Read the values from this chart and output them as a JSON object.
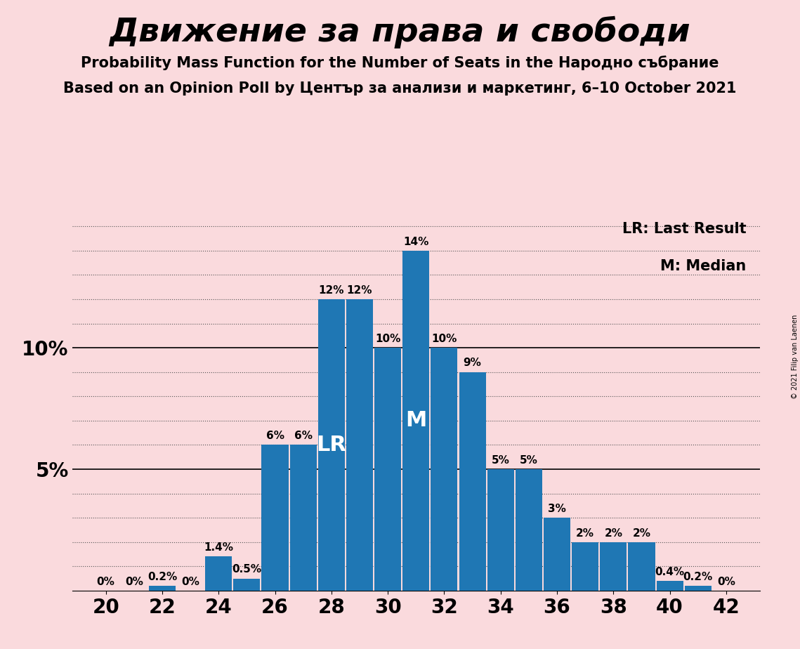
{
  "title": "Движение за права и свободи",
  "subtitle1": "Probability Mass Function for the Number of Seats in the Народно събрание",
  "subtitle2": "Based on an Opinion Poll by Център за анализи и маркетинг, 6–10 October 2021",
  "copyright": "© 2021 Filip van Laenen",
  "seats": [
    20,
    21,
    22,
    23,
    24,
    25,
    26,
    27,
    28,
    29,
    30,
    31,
    32,
    33,
    34,
    35,
    36,
    37,
    38,
    39,
    40,
    41,
    42
  ],
  "probabilities": [
    0.0,
    0.0,
    0.2,
    0.0,
    1.4,
    0.5,
    6.0,
    6.0,
    12.0,
    12.0,
    10.0,
    14.0,
    10.0,
    9.0,
    5.0,
    5.0,
    3.0,
    2.0,
    2.0,
    2.0,
    0.4,
    0.2,
    0.0
  ],
  "bar_labels": [
    "0%",
    "0%",
    "0.2%",
    "0%",
    "1.4%",
    "0.5%",
    "6%",
    "6%",
    "12%",
    "12%",
    "10%",
    "14%",
    "10%",
    "9%",
    "5%",
    "5%",
    "3%",
    "2%",
    "2%",
    "2%",
    "0.4%",
    "0.2%",
    "0%"
  ],
  "bar_color": "#1f77b4",
  "background_color": "#fadadd",
  "lr_seat": 28,
  "median_seat": 31,
  "lr_label": "LR",
  "median_label": "M",
  "legend_lr": "LR: Last Result",
  "legend_m": "M: Median",
  "ylim": [
    0,
    15.5
  ],
  "grid_color": "#555555",
  "bar_label_fontsize": 11,
  "title_fontsize": 34,
  "subtitle_fontsize": 15,
  "legend_fontsize": 15,
  "annotation_fontsize": 22,
  "ytick_fontsize": 20,
  "xtick_fontsize": 20
}
